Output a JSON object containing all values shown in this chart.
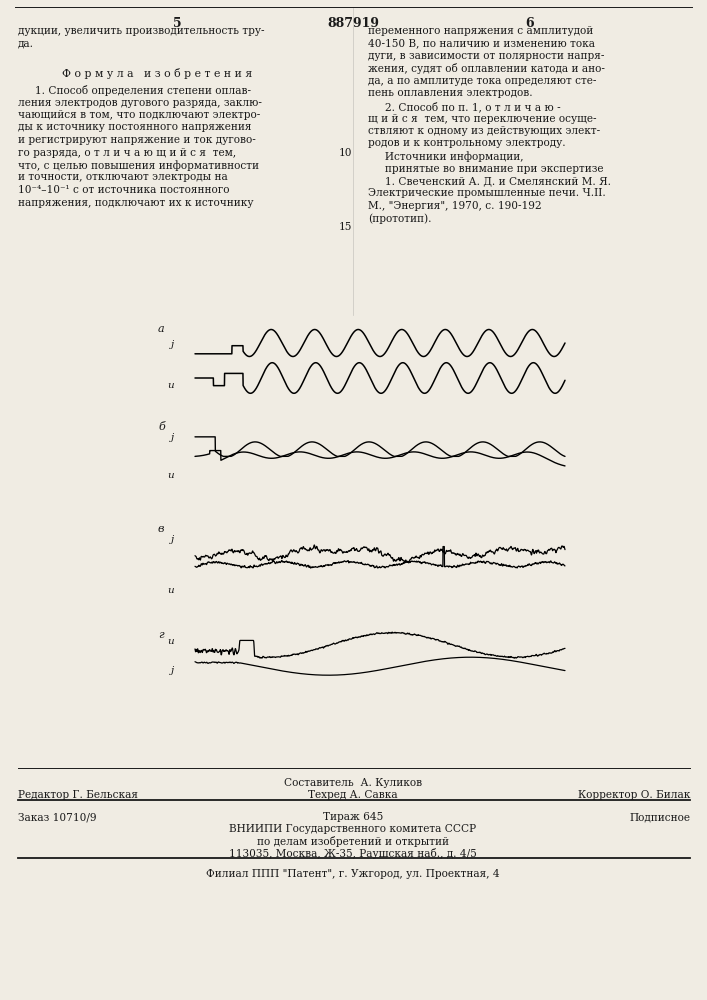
{
  "page_number_left": "5",
  "page_number_center": "887919",
  "page_number_right": "6",
  "background_color": "#f0ece3",
  "text_color": "#1a1a1a",
  "left_column_text": [
    "дукции, увеличить производительность тру-",
    "да."
  ],
  "formula_header": "Ф о р м у л а   и з о б р е т е н и я",
  "left_body_lines": [
    "     1. Способ определения степени оплав-",
    "ления электродов дугового разряда, заклю-",
    "чающийся в том, что подключают электро-",
    "ды к источнику постоянного напряжения",
    "и регистрируют напряжение и ток дугово-",
    "го разряда, о т л и ч а ю щ и й с я  тем,",
    "что, с целью повышения информативности",
    "и точности, отключают электроды на",
    "10⁻⁴–10⁻¹ с от источника постоянного",
    "напряжения, подключают их к источнику"
  ],
  "right_column_lines": [
    "переменного напряжения с амплитудой",
    "40-150 В, по наличию и изменению тока",
    "дуги, в зависимости от полярности напря-",
    "жения, судят об оплавлении катода и ано-",
    "да, а по амплитуде тока определяют сте-",
    "пень оплавления электродов.",
    "     2. Способ по п. 1, о т л и ч а ю -",
    "щ и й с я  тем, что переключение осуще-",
    "ствляют к одному из действующих элект-",
    "родов и к контрольному электроду.",
    "     Источники информации,",
    "     принятые во внимание при экспертизе",
    "     1. Свеченский А. Д. и Смелянский М. Я.",
    "Электрические промышленные печи. Ч.II.",
    "М., \"Энергия\", 1970, с. 190-192",
    "(прототип)."
  ],
  "col_number": "10",
  "col_number2": "15",
  "footer_sestavitel": "Составитель  А. Куликов",
  "footer_redaktor": "Редактор Г. Бельская",
  "footer_tehred": "Техред А. Савка",
  "footer_korrektor": "Корректор О. Билак",
  "footer_zakaz": "Заказ 10710/9",
  "footer_tirazh": "Тираж 645",
  "footer_podpisnoe": "Подписное",
  "footer_vniipи": "ВНИИПИ Государственного комитета СССР",
  "footer_dela": "по делам изобретений и открытий",
  "footer_addr": "113035, Москва, Ж-35, Раушская наб., д. 4/5",
  "footer_filial": "Филиал ППП \"Патент\", г. Ужгород, ул. Проектная, 4"
}
